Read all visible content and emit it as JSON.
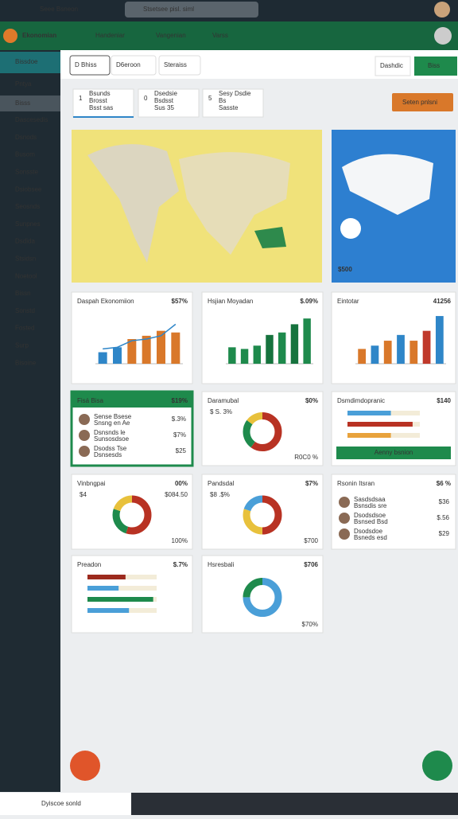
{
  "topbar": {
    "app": "Seee Bsneon",
    "search": "Stsetsee pisl. siml"
  },
  "header": {
    "brand": "Ekonomian",
    "nav": [
      "Handeniar",
      "Vangenian",
      "Varss"
    ]
  },
  "sidebar": {
    "items": [
      "Bissdoe",
      "Pntya",
      "Bisss",
      "Dascesedis",
      "Dsnods",
      "Busom",
      "Sonsste",
      "Dsiobsee",
      "Seosnds",
      "Sunpnes",
      "Dsdida",
      "Stsidsn",
      "Noetool",
      "Bissn",
      "Sonstd",
      "Fosted",
      "Surp",
      "Bisoine"
    ]
  },
  "tabs": {
    "items": [
      "D Bhiss",
      "D6eroon",
      "Steraiss"
    ],
    "link": "Dashdic",
    "button": "Biss"
  },
  "stats": [
    {
      "number": "1",
      "lines": [
        "Bsunds",
        "Brosst",
        "Bsst sas"
      ]
    },
    {
      "number": "0",
      "lines": [
        "Dsedsie",
        "Bsdsst",
        "Sus 35"
      ]
    },
    {
      "number": "5",
      "lines": [
        "Sesy Dsdie",
        "Bs",
        "Sasste"
      ]
    }
  ],
  "action": "Seten pnlsni",
  "map": {
    "value": "$500"
  },
  "cards": [
    {
      "kind": "bars",
      "title": "Daspah Ekonomiion",
      "value": "$57%",
      "ylim": [
        0,
        60
      ],
      "values": [
        14,
        20,
        30,
        34,
        40,
        38
      ],
      "colors": [
        "#2f86c8",
        "#2f86c8",
        "#d9782a",
        "#d9782a",
        "#d9782a",
        "#d9782a"
      ],
      "line": [
        18,
        20,
        28,
        30,
        34,
        48
      ],
      "line_color": "#2f86c8"
    },
    {
      "kind": "bars",
      "title": "Hsjian Moyadan",
      "value": "$.09%",
      "ylim": [
        0,
        60
      ],
      "values": [
        20,
        18,
        22,
        35,
        38,
        48,
        55
      ],
      "colors": [
        "#1e8a4c",
        "#1e8a4c",
        "#1e8a4c",
        "#16733e",
        "#1e8a4c",
        "#16733e",
        "#1e8a4c"
      ]
    },
    {
      "kind": "bars",
      "title": "Eintotar",
      "value": "41256",
      "ylim": [
        0,
        60
      ],
      "values": [
        18,
        22,
        28,
        35,
        28,
        40,
        58
      ],
      "colors": [
        "#d9782a",
        "#2f86c8",
        "#d9782a",
        "#2f86c8",
        "#d9782a",
        "#c0392b",
        "#2f86c8"
      ]
    },
    {
      "kind": "people",
      "title": "Fisá Bisa",
      "value": "$19%",
      "rows": [
        {
          "lines": [
            "Sense Bsese",
            "Snsng en Ae"
          ],
          "value": "$.3%"
        },
        {
          "lines": [
            "Dsnsnds le",
            "Sunsosdsoe"
          ],
          "value": "$7%"
        },
        {
          "lines": [
            "Dsodss Tse",
            "Dsnsesds"
          ],
          "value": "$25"
        }
      ]
    },
    {
      "kind": "donut",
      "title": "Daramubal",
      "value": "$0%",
      "sub": "$ S. 3%",
      "footer": "R0C0 %",
      "values": [
        60,
        25,
        15
      ],
      "colors": [
        "#b83223",
        "#1e8a4c",
        "#e8c13c"
      ]
    },
    {
      "kind": "hbars",
      "title": "Dsmdimdopranic",
      "value": "$140",
      "xlim": [
        0,
        100
      ],
      "values": [
        60,
        90,
        60
      ],
      "colors": [
        "#4a9fd8",
        "#b83223",
        "#e8a23c"
      ],
      "button": "Aenny bsnion"
    },
    {
      "kind": "donut",
      "title": "Vinbngpai",
      "value": "00%",
      "sub": "$4",
      "sub2": "$084.50",
      "footer": "100%",
      "values": [
        55,
        25,
        20
      ],
      "colors": [
        "#b83223",
        "#1e8a4c",
        "#e8c13c"
      ]
    },
    {
      "kind": "donut",
      "title": "Pandsdal",
      "value": "$7%",
      "sub": "$8 .$%",
      "footer": "$700",
      "values": [
        50,
        30,
        20
      ],
      "colors": [
        "#b83223",
        "#e8c13c",
        "#4a9fd8"
      ]
    },
    {
      "kind": "people",
      "title": "Rsonin Itsran",
      "value": "$6 %",
      "rows": [
        {
          "lines": [
            "Sasdsdsaa",
            "Bsnsdis sre"
          ],
          "value": "$36"
        },
        {
          "lines": [
            "Dsodsdsoe",
            "Bsnsed Bsd"
          ],
          "value": "$.56"
        },
        {
          "lines": [
            "Dsodsdoe",
            "Bsneds esd"
          ],
          "value": "$29"
        }
      ]
    },
    {
      "kind": "hbars",
      "title": "Preadon",
      "value": "$.7%",
      "xlim": [
        0,
        100
      ],
      "values": [
        55,
        45,
        95,
        60
      ],
      "colors": [
        "#9c2a1d",
        "#4a9fd8",
        "#1e8a4c",
        "#4a9fd8"
      ]
    },
    {
      "kind": "donut",
      "title": "Hsresbali",
      "value": "$706",
      "footer": "$70%",
      "values": [
        75,
        25
      ],
      "colors": [
        "#4a9fd8",
        "#1e8a4c"
      ]
    }
  ],
  "taskbar": {
    "search": "Dyiscoe sonld"
  }
}
